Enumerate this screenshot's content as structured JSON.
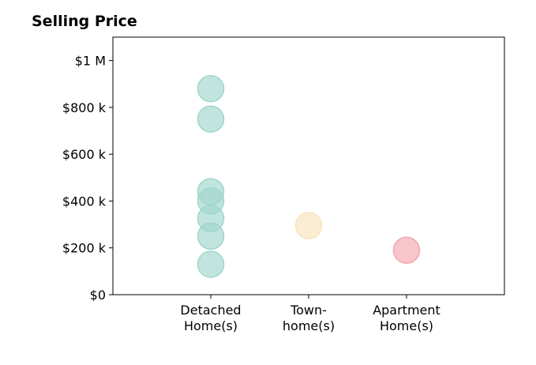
{
  "chart_data": {
    "type": "scatter",
    "title": "Selling Price",
    "xlabel": "",
    "ylabel": "",
    "categories": [
      [
        "Detached",
        "Home(s)"
      ],
      [
        "Town-",
        "home(s)"
      ],
      [
        "Apartment",
        "Home(s)"
      ]
    ],
    "ylim": [
      0,
      1100000
    ],
    "yticks": [
      0,
      200000,
      400000,
      600000,
      800000,
      1000000
    ],
    "ytick_labels": [
      "$0",
      "$200 k",
      "$400 k",
      "$600 k",
      "$800 k",
      "$1 M"
    ],
    "grid": false,
    "series": [
      {
        "category": 0,
        "color": "#9fd6cc",
        "values": [
          880000,
          750000,
          440000,
          400000,
          325000,
          250000,
          130000
        ]
      },
      {
        "category": 1,
        "color": "#f7e4bb",
        "values": [
          295000
        ]
      },
      {
        "category": 2,
        "color": "#f4a6ad",
        "values": [
          190000
        ]
      }
    ]
  }
}
